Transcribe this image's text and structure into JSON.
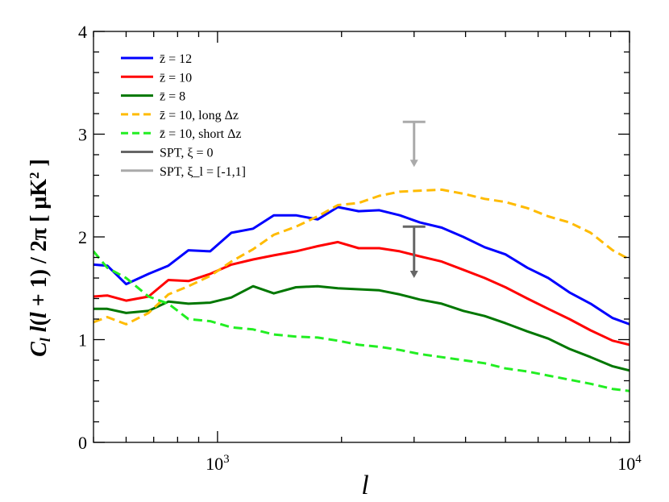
{
  "chart_data": {
    "type": "line",
    "xscale": "log",
    "xlim": [
      500,
      10000
    ],
    "ylim": [
      0,
      4
    ],
    "ylabel": "C_l l(l + 1) / 2π [ μK² ]",
    "xlabel": "l",
    "x_ticks": [
      {
        "value": 1000,
        "base": "10",
        "exp": "3"
      },
      {
        "value": 10000,
        "base": "10",
        "exp": "4"
      }
    ],
    "y_ticks": [
      "0",
      "1",
      "2",
      "3",
      "4"
    ],
    "legend_position": "top-left",
    "series": [
      {
        "name": "z̄ = 12",
        "color": "#0000ff",
        "dash": "solid",
        "x": [
          500,
          540,
          600,
          680,
          760,
          850,
          960,
          1080,
          1220,
          1370,
          1550,
          1750,
          1960,
          2200,
          2470,
          2770,
          3100,
          3500,
          3950,
          4450,
          5000,
          5650,
          6350,
          7150,
          8050,
          9100,
          10000
        ],
        "y": [
          1.73,
          1.72,
          1.54,
          1.64,
          1.72,
          1.87,
          1.86,
          2.04,
          2.08,
          2.21,
          2.21,
          2.17,
          2.29,
          2.25,
          2.26,
          2.21,
          2.14,
          2.09,
          2.0,
          1.9,
          1.83,
          1.7,
          1.6,
          1.46,
          1.35,
          1.21,
          1.15
        ]
      },
      {
        "name": "z̄ = 10",
        "color": "#ff0000",
        "dash": "solid",
        "x": [
          500,
          540,
          600,
          680,
          760,
          850,
          960,
          1080,
          1220,
          1370,
          1550,
          1750,
          1960,
          2200,
          2470,
          2770,
          3100,
          3500,
          3950,
          4450,
          5000,
          5650,
          6350,
          7150,
          8050,
          9100,
          10000
        ],
        "y": [
          1.42,
          1.43,
          1.38,
          1.42,
          1.58,
          1.57,
          1.64,
          1.73,
          1.78,
          1.82,
          1.86,
          1.91,
          1.95,
          1.89,
          1.89,
          1.86,
          1.81,
          1.76,
          1.68,
          1.6,
          1.51,
          1.4,
          1.3,
          1.2,
          1.09,
          0.99,
          0.95
        ]
      },
      {
        "name": "z̄ = 8",
        "color": "#007700",
        "dash": "solid",
        "x": [
          500,
          540,
          600,
          680,
          760,
          850,
          960,
          1080,
          1220,
          1370,
          1550,
          1750,
          1960,
          2200,
          2470,
          2770,
          3100,
          3500,
          3950,
          4450,
          5000,
          5650,
          6350,
          7150,
          8050,
          9100,
          10000
        ],
        "y": [
          1.3,
          1.3,
          1.26,
          1.28,
          1.37,
          1.35,
          1.36,
          1.41,
          1.52,
          1.45,
          1.51,
          1.52,
          1.5,
          1.49,
          1.48,
          1.44,
          1.39,
          1.35,
          1.28,
          1.23,
          1.16,
          1.08,
          1.01,
          0.91,
          0.83,
          0.74,
          0.7
        ]
      },
      {
        "name": "z̄ = 10, long Δz",
        "color": "#ffbb00",
        "dash": "dashed",
        "x": [
          500,
          540,
          600,
          680,
          760,
          850,
          960,
          1080,
          1220,
          1370,
          1550,
          1750,
          1960,
          2200,
          2470,
          2770,
          3100,
          3500,
          3950,
          4450,
          5000,
          5650,
          6350,
          7150,
          8050,
          9100,
          10000
        ],
        "y": [
          1.17,
          1.22,
          1.15,
          1.26,
          1.44,
          1.52,
          1.62,
          1.76,
          1.88,
          2.02,
          2.1,
          2.2,
          2.31,
          2.33,
          2.4,
          2.44,
          2.45,
          2.46,
          2.42,
          2.37,
          2.34,
          2.28,
          2.2,
          2.14,
          2.04,
          1.87,
          1.78
        ]
      },
      {
        "name": "z̄ = 10, short Δz",
        "color": "#22ee22",
        "dash": "dashed",
        "x": [
          500,
          540,
          600,
          680,
          760,
          850,
          960,
          1080,
          1220,
          1370,
          1550,
          1750,
          1960,
          2200,
          2470,
          2770,
          3100,
          3500,
          3950,
          4450,
          5000,
          5650,
          6350,
          7150,
          8050,
          9100,
          10000
        ],
        "y": [
          1.86,
          1.7,
          1.6,
          1.42,
          1.35,
          1.2,
          1.18,
          1.12,
          1.1,
          1.05,
          1.03,
          1.02,
          0.99,
          0.95,
          0.93,
          0.9,
          0.86,
          0.83,
          0.8,
          0.77,
          0.72,
          0.69,
          0.65,
          0.61,
          0.57,
          0.52,
          0.5
        ]
      }
    ],
    "limits": [
      {
        "name": "SPT, ξ = 0",
        "color": "#666666",
        "x": 3000,
        "y_top": 2.1,
        "y_bottom": 1.6
      },
      {
        "name": "SPT, ξ_l = [-1,1]",
        "color": "#aaaaaa",
        "x": 3000,
        "y_top": 3.12,
        "y_bottom": 2.68
      }
    ]
  }
}
